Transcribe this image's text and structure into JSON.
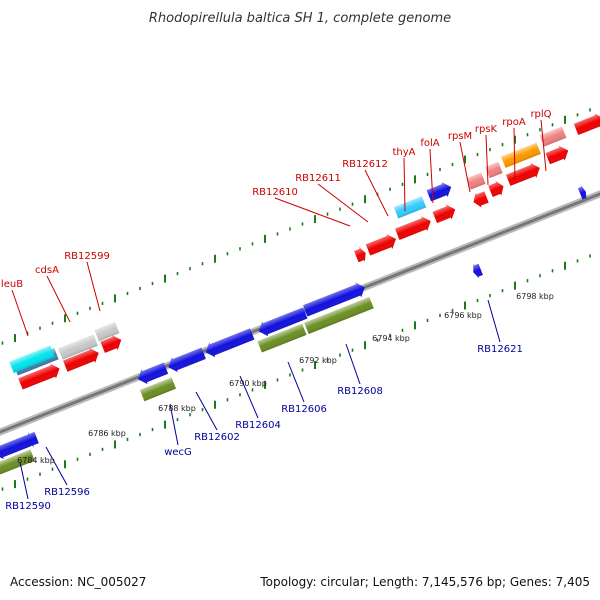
{
  "title": "Rhodopirellula baltica SH 1, complete genome",
  "footer": {
    "accession": "Accession: NC_005027",
    "summary": "Topology: circular; Length: 7,145,576 bp; Genes: 7,405"
  },
  "colors": {
    "backbone": "#888888",
    "tick": "#1a7a1a",
    "label_top": "#cc0000",
    "label_bottom": "#000099",
    "gene_red": "#ee0000",
    "gene_blue": "#1111dd",
    "gene_olive": "#6b8e23",
    "gene_gray": "#c8c8c8",
    "gene_cyan": "#00e5ee",
    "gene_steelblue": "#4682b4",
    "gene_pink": "#f08080",
    "gene_orange": "#ff9900",
    "gene_skyblue": "#33ccff"
  },
  "scale_labels": [
    "6784 kbp",
    "6786 kbp",
    "6788 kbp",
    "6790 kbp",
    "6792 kbp",
    "6794 kbp",
    "6796 kbp",
    "6798 kbp"
  ],
  "top_gene_labels": [
    "leuB",
    "cdsA",
    "RB12599",
    "RB12610",
    "RB12611",
    "RB12612",
    "thyA",
    "folA",
    "rpsM",
    "rpsK",
    "rpoA",
    "rplQ"
  ],
  "bottom_gene_labels": [
    "RB12590",
    "RB12596",
    "wecG",
    "RB12602",
    "RB12604",
    "RB12606",
    "RB12608",
    "RB12621"
  ]
}
